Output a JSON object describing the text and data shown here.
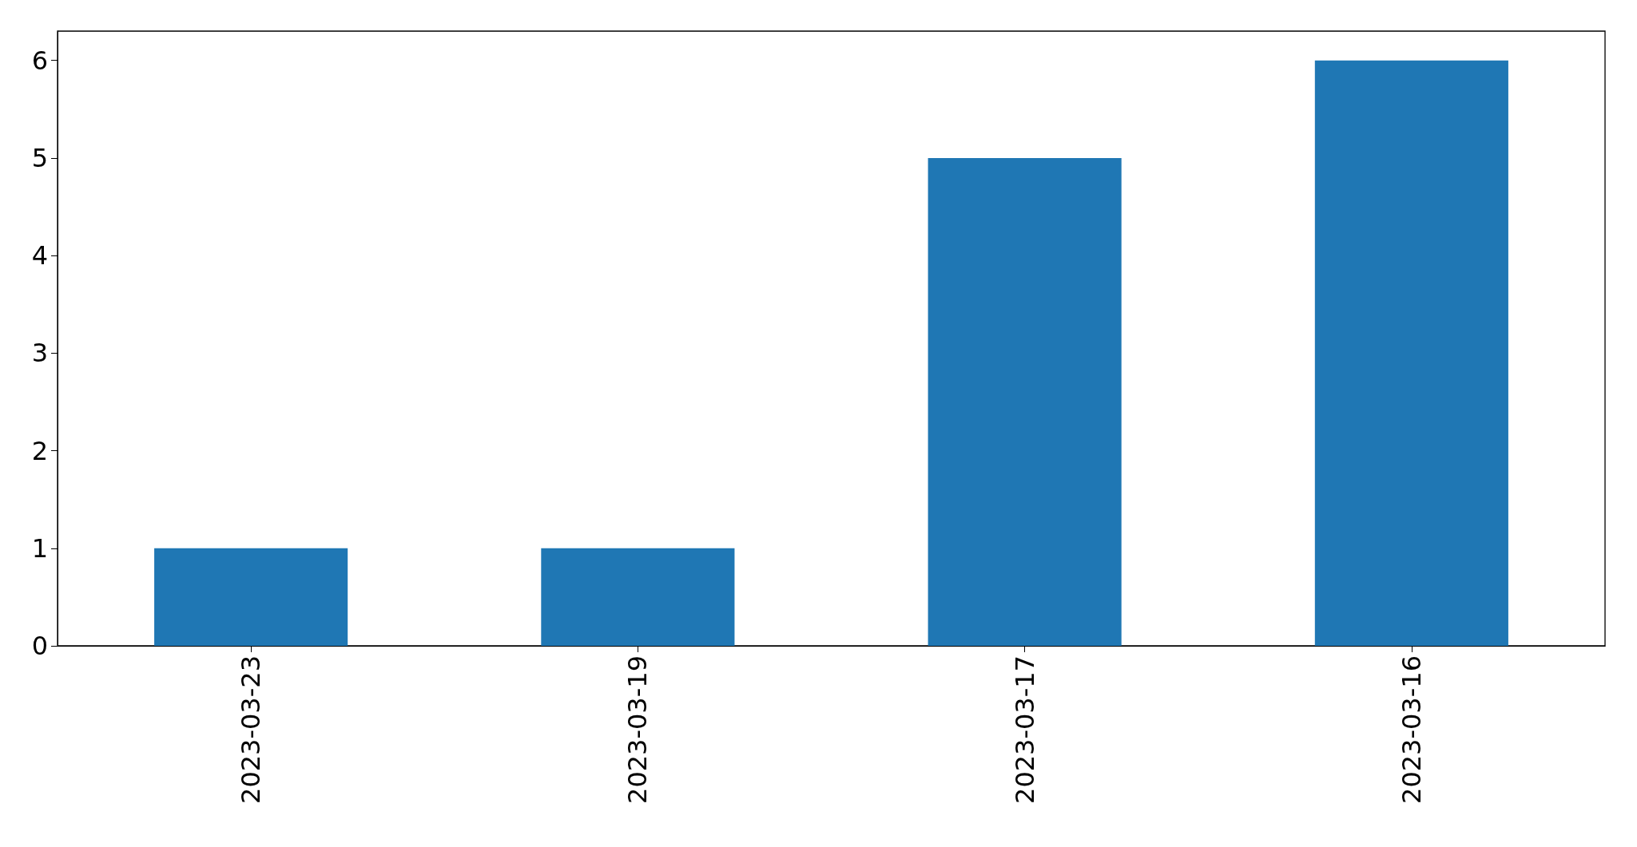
{
  "chart_data": {
    "type": "bar",
    "categories": [
      "2023-03-23",
      "2023-03-19",
      "2023-03-17",
      "2023-03-16"
    ],
    "values": [
      1,
      1,
      5,
      6
    ],
    "color": "#1f77b4",
    "ylim": [
      0,
      6.3
    ],
    "yticks": [
      0,
      1,
      2,
      3,
      4,
      5,
      6
    ],
    "grid": false
  }
}
